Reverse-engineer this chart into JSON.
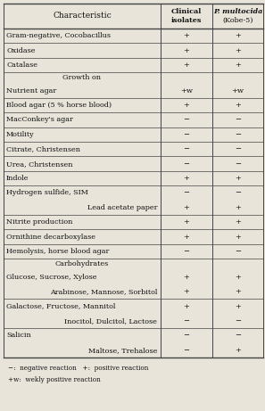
{
  "rows": [
    {
      "label": "Gram-negative, Cocobacillus",
      "indent": 0,
      "col1": "+",
      "col2": "+",
      "sep_above": true,
      "is_subheader": false
    },
    {
      "label": "Oxidase",
      "indent": 0,
      "col1": "+",
      "col2": "+",
      "sep_above": true,
      "is_subheader": false
    },
    {
      "label": "Catalase",
      "indent": 0,
      "col1": "+",
      "col2": "+",
      "sep_above": true,
      "is_subheader": false
    },
    {
      "label": "Growth on",
      "indent": 0,
      "col1": "",
      "col2": "",
      "sep_above": true,
      "is_subheader": true
    },
    {
      "label": "Nutrient agar",
      "indent": 0,
      "col1": "+w",
      "col2": "+w",
      "sep_above": false,
      "is_subheader": false
    },
    {
      "label": "Blood agar (5 % horse blood)",
      "indent": 0,
      "col1": "+",
      "col2": "+",
      "sep_above": true,
      "is_subheader": false
    },
    {
      "label": "MacConkey's agar",
      "indent": 0,
      "col1": "−",
      "col2": "−",
      "sep_above": true,
      "is_subheader": false
    },
    {
      "label": "Motility",
      "indent": 0,
      "col1": "−",
      "col2": "−",
      "sep_above": true,
      "is_subheader": false
    },
    {
      "label": "Citrate, Christensen",
      "indent": 0,
      "col1": "−",
      "col2": "−",
      "sep_above": true,
      "is_subheader": false
    },
    {
      "label": "Urea, Christensen",
      "indent": 0,
      "col1": "−",
      "col2": "−",
      "sep_above": true,
      "is_subheader": false
    },
    {
      "label": "Indole",
      "indent": 0,
      "col1": "+",
      "col2": "+",
      "sep_above": true,
      "is_subheader": false
    },
    {
      "label": "Hydrogen sulfide, SIM",
      "indent": 0,
      "col1": "−",
      "col2": "−",
      "sep_above": true,
      "is_subheader": false
    },
    {
      "label": "Lead acetate paper",
      "indent": 1,
      "col1": "+",
      "col2": "+",
      "sep_above": false,
      "is_subheader": false
    },
    {
      "label": "Nitrite production",
      "indent": 0,
      "col1": "+",
      "col2": "+",
      "sep_above": true,
      "is_subheader": false
    },
    {
      "label": "Ornithine decarboxylase",
      "indent": 0,
      "col1": "+",
      "col2": "+",
      "sep_above": true,
      "is_subheader": false
    },
    {
      "label": "Hemolysis, horse blood agar",
      "indent": 0,
      "col1": "−",
      "col2": "−",
      "sep_above": true,
      "is_subheader": false
    },
    {
      "label": "Carbohydrates",
      "indent": 0,
      "col1": "",
      "col2": "",
      "sep_above": true,
      "is_subheader": true
    },
    {
      "label": "Glucose, Sucrose, Xylose",
      "indent": 0,
      "col1": "+",
      "col2": "+",
      "sep_above": false,
      "is_subheader": false
    },
    {
      "label": "Arabinose, Mannose, Sorbitol",
      "indent": 1,
      "col1": "+",
      "col2": "+",
      "sep_above": false,
      "is_subheader": false
    },
    {
      "label": "Galactose, Fructose, Mannitol",
      "indent": 0,
      "col1": "+",
      "col2": "+",
      "sep_above": true,
      "is_subheader": false
    },
    {
      "label": "Inocitol, Dulcitol, Lactose",
      "indent": 1,
      "col1": "−",
      "col2": "−",
      "sep_above": false,
      "is_subheader": false
    },
    {
      "label": "Salicin",
      "indent": 0,
      "col1": "−",
      "col2": "−",
      "sep_above": true,
      "is_subheader": false
    },
    {
      "label": "Maltose, Trehalose",
      "indent": 1,
      "col1": "−",
      "col2": "+",
      "sep_above": false,
      "is_subheader": false
    }
  ],
  "footer_lines": [
    "−:  negative reaction   +:  positive reaction",
    "+w:  wekly positive reaction"
  ],
  "bg_color": "#e8e4da",
  "text_color": "#111111",
  "line_color": "#444444",
  "header_label": "Characteristic",
  "header_col1": "Clinical\nisolates",
  "header_col2_line1": "P. multocida",
  "header_col2_line2": "(Kobe-5)"
}
